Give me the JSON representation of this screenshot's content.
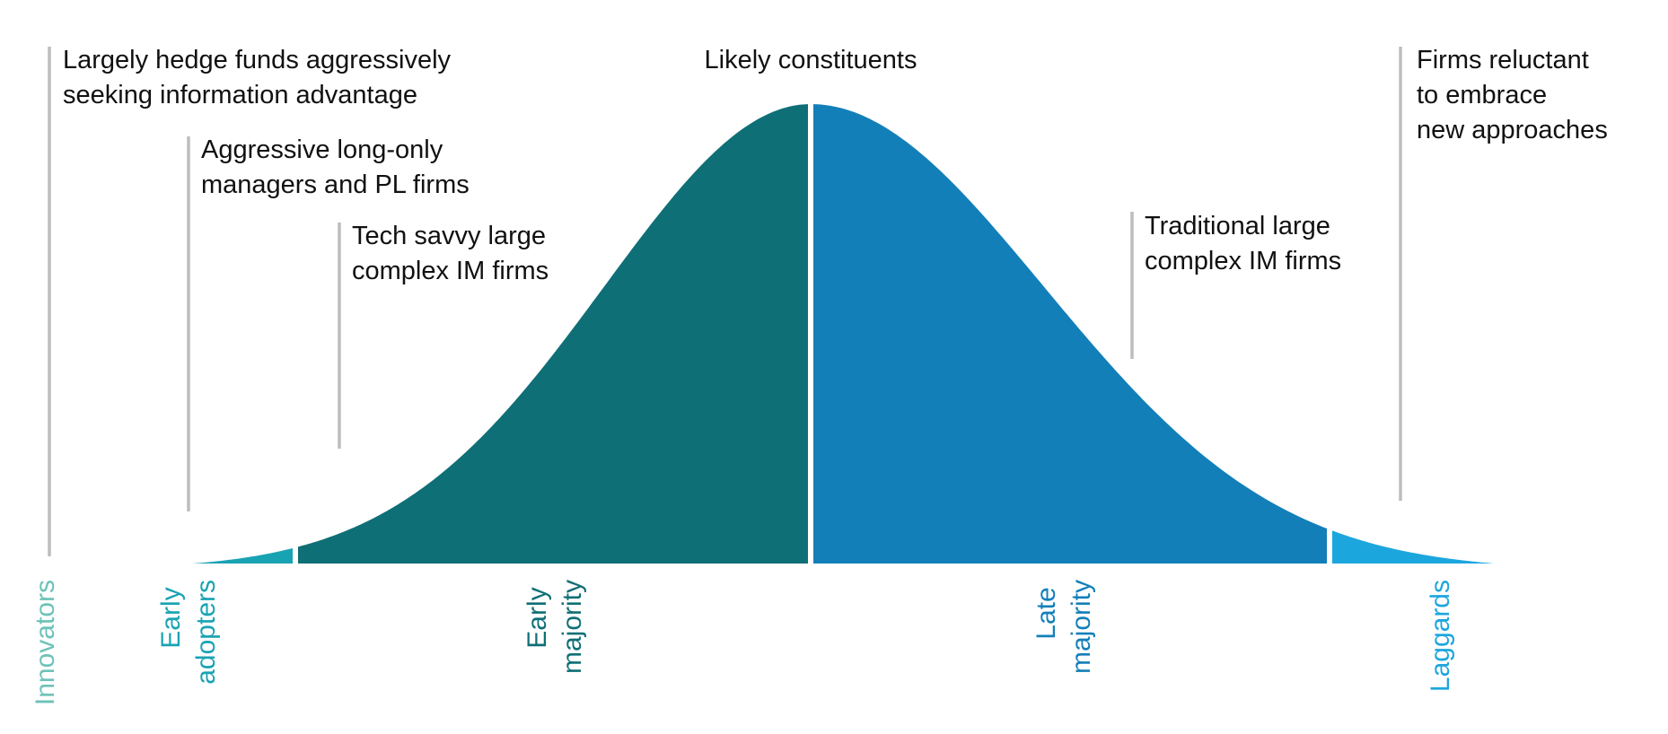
{
  "header": {
    "title": "Likely constituents"
  },
  "colors": {
    "innovators": "#6cc2b8",
    "early_adopters": "#18a3b3",
    "early_majority": "#0f6f76",
    "late_majority": "#137fb9",
    "laggards": "#1ca6de",
    "leader_line": "#bdbdbd",
    "text": "#111111"
  },
  "segments": [
    {
      "key": "innovators",
      "label_lines": [
        "Innovators"
      ],
      "color": "#6cc2b8"
    },
    {
      "key": "early_adopters",
      "label_lines": [
        "Early",
        "adopters"
      ],
      "color": "#18a3b3"
    },
    {
      "key": "early_majority",
      "label_lines": [
        "Early",
        "majority"
      ],
      "color": "#0f6f76"
    },
    {
      "key": "late_majority",
      "label_lines": [
        "Late",
        "majority"
      ],
      "color": "#137fb9"
    },
    {
      "key": "laggards",
      "label_lines": [
        "Laggards"
      ],
      "color": "#1ca6de"
    }
  ],
  "callouts": [
    {
      "key": "innovators",
      "lines": [
        "Largely hedge funds aggressively",
        "seeking information advantage"
      ]
    },
    {
      "key": "early_adopters",
      "lines": [
        "Aggressive long-only",
        "managers and PL firms"
      ]
    },
    {
      "key": "early_majority",
      "lines": [
        "Tech savvy large",
        "complex IM firms"
      ]
    },
    {
      "key": "late_majority",
      "lines": [
        "Traditional large",
        "complex IM firms"
      ]
    },
    {
      "key": "laggards",
      "lines": [
        "Firms reluctant",
        "to embrace",
        "new approaches"
      ]
    }
  ]
}
